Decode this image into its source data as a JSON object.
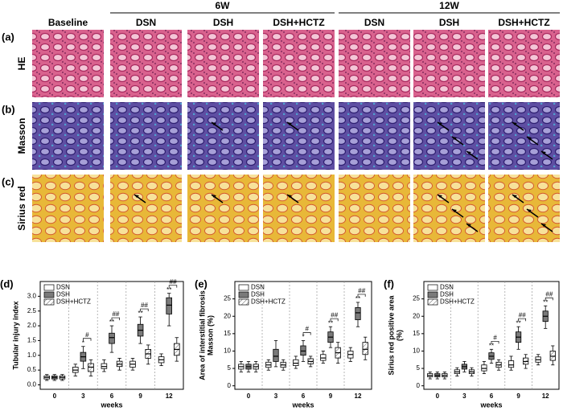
{
  "figure": {
    "header_groups": [
      "6W",
      "12W"
    ],
    "columns": [
      "Baseline",
      "DSN",
      "DSH",
      "DSH+HCTZ",
      "DSN",
      "DSH",
      "DSH+HCTZ"
    ],
    "rows": [
      {
        "panel": "(a)",
        "label": "HE"
      },
      {
        "panel": "(b)",
        "label": "Masson"
      },
      {
        "panel": "(c)",
        "label": "Sirius red"
      }
    ]
  },
  "chart_data": [
    {
      "type": "box",
      "panel": "(d)",
      "y_label": [
        "Tubular injury index"
      ],
      "x_label": "weeks",
      "categories": [
        "0",
        "3",
        "6",
        "9",
        "12"
      ],
      "ylim": [
        -0.15,
        3.5
      ],
      "yticks": [
        {
          "value": 0,
          "label": "0.0"
        },
        {
          "value": 0.5,
          "label": "0.5"
        },
        {
          "value": 1,
          "label": "1.0"
        },
        {
          "value": 1.5,
          "label": "1.5"
        },
        {
          "value": 2,
          "label": "2.0"
        },
        {
          "value": 2.5,
          "label": "2.5"
        },
        {
          "value": 3,
          "label": "3.0"
        }
      ],
      "series": [
        {
          "name": "DSN",
          "color": "#ffffff",
          "pattern": "solid",
          "values": [
            [
              0.15,
              0.2,
              0.25,
              0.3,
              0.35
            ],
            [
              0.3,
              0.42,
              0.5,
              0.6,
              0.7
            ],
            [
              0.45,
              0.55,
              0.62,
              0.72,
              0.85
            ],
            [
              0.5,
              0.6,
              0.7,
              0.8,
              0.9
            ],
            [
              0.65,
              0.75,
              0.85,
              0.95,
              1.05
            ]
          ]
        },
        {
          "name": "DSH",
          "color": "#7a7a7a",
          "pattern": "solid",
          "values": [
            [
              0.15,
              0.2,
              0.25,
              0.3,
              0.35
            ],
            [
              0.55,
              0.8,
              0.95,
              1.1,
              1.3
            ],
            [
              1.1,
              1.4,
              1.6,
              1.75,
              2.0
            ],
            [
              1.4,
              1.65,
              1.85,
              2.05,
              2.3
            ],
            [
              2.0,
              2.4,
              2.7,
              2.95,
              3.1
            ]
          ]
        },
        {
          "name": "DSH+HCTZ",
          "color": "#ffffff",
          "pattern": "hatch",
          "values": [
            [
              0.15,
              0.2,
              0.25,
              0.3,
              0.35
            ],
            [
              0.3,
              0.45,
              0.6,
              0.72,
              0.85
            ],
            [
              0.5,
              0.62,
              0.7,
              0.8,
              0.9
            ],
            [
              0.7,
              0.9,
              1.05,
              1.2,
              1.35
            ],
            [
              0.8,
              1.0,
              1.2,
              1.4,
              1.6
            ]
          ]
        }
      ],
      "dsh_marks": [
        null,
        "*",
        "**",
        "**",
        "**"
      ],
      "significance": [
        null,
        "#",
        "##",
        "##",
        "##"
      ],
      "legend": "upper left"
    },
    {
      "type": "box",
      "panel": "(e)",
      "y_label": [
        "Area of interstitial fibrosis",
        "Masson (%)"
      ],
      "x_label": "weeks",
      "categories": [
        "0",
        "3",
        "6",
        "9",
        "12"
      ],
      "ylim": [
        -1,
        30
      ],
      "yticks": [
        0,
        5,
        10,
        15,
        20,
        25
      ],
      "series": [
        {
          "name": "DSN",
          "color": "#ffffff",
          "pattern": "solid",
          "values": [
            [
              4,
              4.8,
              5.5,
              6.2,
              7
            ],
            [
              4.5,
              5.3,
              6,
              6.8,
              7.5
            ],
            [
              5,
              5.8,
              6.5,
              7.5,
              8.5
            ],
            [
              6.5,
              7.3,
              8,
              9,
              10
            ],
            [
              7,
              8,
              9,
              10,
              11
            ]
          ]
        },
        {
          "name": "DSH",
          "color": "#7a7a7a",
          "pattern": "solid",
          "values": [
            [
              4,
              4.8,
              5.5,
              6.2,
              7
            ],
            [
              5.5,
              7,
              8.5,
              10.5,
              13
            ],
            [
              7,
              8.8,
              10,
              11.5,
              13
            ],
            [
              11,
              12.5,
              14,
              15.5,
              17
            ],
            [
              17,
              19,
              21,
              22.5,
              24
            ]
          ]
        },
        {
          "name": "DSH+HCTZ",
          "color": "#ffffff",
          "pattern": "hatch",
          "values": [
            [
              4,
              4.8,
              5.5,
              6.2,
              7
            ],
            [
              4.5,
              5.3,
              6,
              6.8,
              7.5
            ],
            [
              5.5,
              6.3,
              7,
              7.8,
              8.5
            ],
            [
              6.5,
              8,
              9.5,
              11,
              12.5
            ],
            [
              7.5,
              9,
              10.5,
              12.5,
              14
            ]
          ]
        }
      ],
      "dsh_marks": [
        null,
        null,
        "*",
        "**",
        "**"
      ],
      "significance": [
        null,
        null,
        "#",
        "##",
        "##"
      ],
      "legend": "upper left"
    },
    {
      "type": "box",
      "panel": "(f)",
      "y_label": [
        "Sirius red positive area",
        "(%)"
      ],
      "x_label": "weeks",
      "categories": [
        "0",
        "3",
        "6",
        "9",
        "12"
      ],
      "ylim": [
        -1,
        30
      ],
      "yticks": [
        0,
        5,
        10,
        15,
        20,
        25
      ],
      "series": [
        {
          "name": "DSN",
          "color": "#ffffff",
          "pattern": "solid",
          "values": [
            [
              2,
              2.6,
              3,
              3.5,
              4
            ],
            [
              2.8,
              3.5,
              4,
              4.6,
              5.2
            ],
            [
              3.5,
              4.3,
              5,
              6,
              7
            ],
            [
              4.5,
              5.3,
              6,
              7.2,
              8.5
            ],
            [
              6,
              6.8,
              7.5,
              8.3,
              9
            ]
          ]
        },
        {
          "name": "DSH",
          "color": "#7a7a7a",
          "pattern": "solid",
          "values": [
            [
              2,
              2.6,
              3,
              3.5,
              4
            ],
            [
              4,
              4.8,
              5.5,
              6.2,
              7
            ],
            [
              6.5,
              7.6,
              8.5,
              9.5,
              10.5
            ],
            [
              10.5,
              12.5,
              14,
              15.5,
              17
            ],
            [
              16.5,
              18.5,
              20,
              21.5,
              23
            ]
          ]
        },
        {
          "name": "DSH+HCTZ",
          "color": "#ffffff",
          "pattern": "hatch",
          "values": [
            [
              2,
              2.6,
              3,
              3.5,
              4
            ],
            [
              2.8,
              3.5,
              4,
              4.6,
              5.2
            ],
            [
              4.5,
              5.3,
              6,
              6.8,
              7.5
            ],
            [
              5,
              6.2,
              7,
              8,
              9
            ],
            [
              6,
              7.3,
              8.5,
              10,
              11.5
            ]
          ]
        }
      ],
      "dsh_marks": [
        null,
        null,
        "**",
        "**",
        "**"
      ],
      "significance": [
        null,
        null,
        "#",
        "##",
        "##"
      ],
      "legend": "upper left"
    }
  ]
}
